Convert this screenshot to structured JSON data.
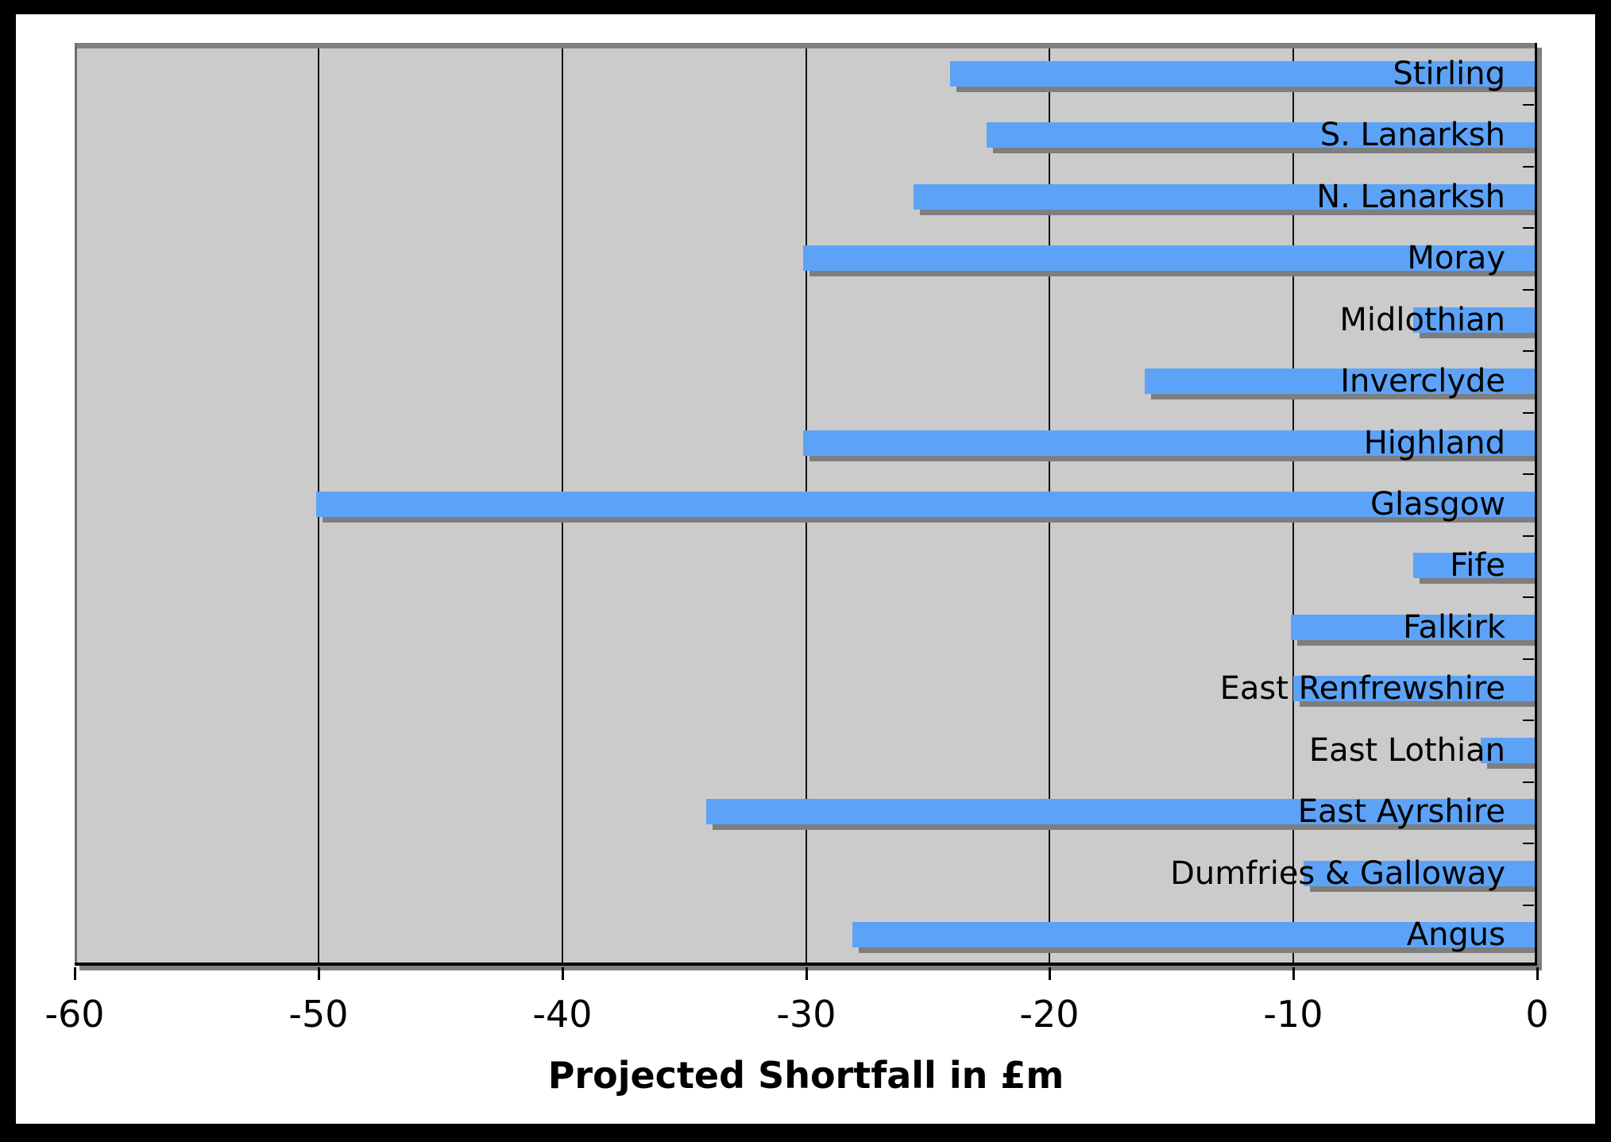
{
  "chart_data": {
    "type": "bar",
    "orientation": "horizontal",
    "title": "",
    "xlabel": "Projected Shortfall in £m",
    "ylabel": "",
    "categories": [
      "Stirling",
      "S. Lanarksh",
      "N. Lanarksh",
      "Moray",
      "Midlothian",
      "Inverclyde",
      "Highland",
      "Glasgow",
      "Fife",
      "Falkirk",
      "East Renfrewshire",
      "East Lothian",
      "East Ayrshire",
      "Dumfries & Galloway",
      "Angus"
    ],
    "values": [
      -24,
      -22.5,
      -25.5,
      -30,
      -5,
      -16,
      -30,
      -50,
      -5,
      -10,
      -9.9,
      -2.2,
      -34,
      -9.5,
      -28
    ],
    "xlim": [
      -60,
      0
    ],
    "x_ticks": [
      -60,
      -50,
      -40,
      -30,
      -20,
      -10,
      0
    ],
    "x_tick_labels": [
      "-60",
      "-50",
      "-40",
      "-30",
      "-20",
      "-10",
      "0"
    ],
    "grid": "vertical-major",
    "legend": "none",
    "colors": {
      "bar": "#5CA3F8",
      "bar_shadow": "#7E7E7E",
      "plot_background": "#CBCBCB",
      "chart_background": "#FFFFFF",
      "frame": "#000000",
      "gridline": "#111111",
      "text": "#000000"
    }
  }
}
